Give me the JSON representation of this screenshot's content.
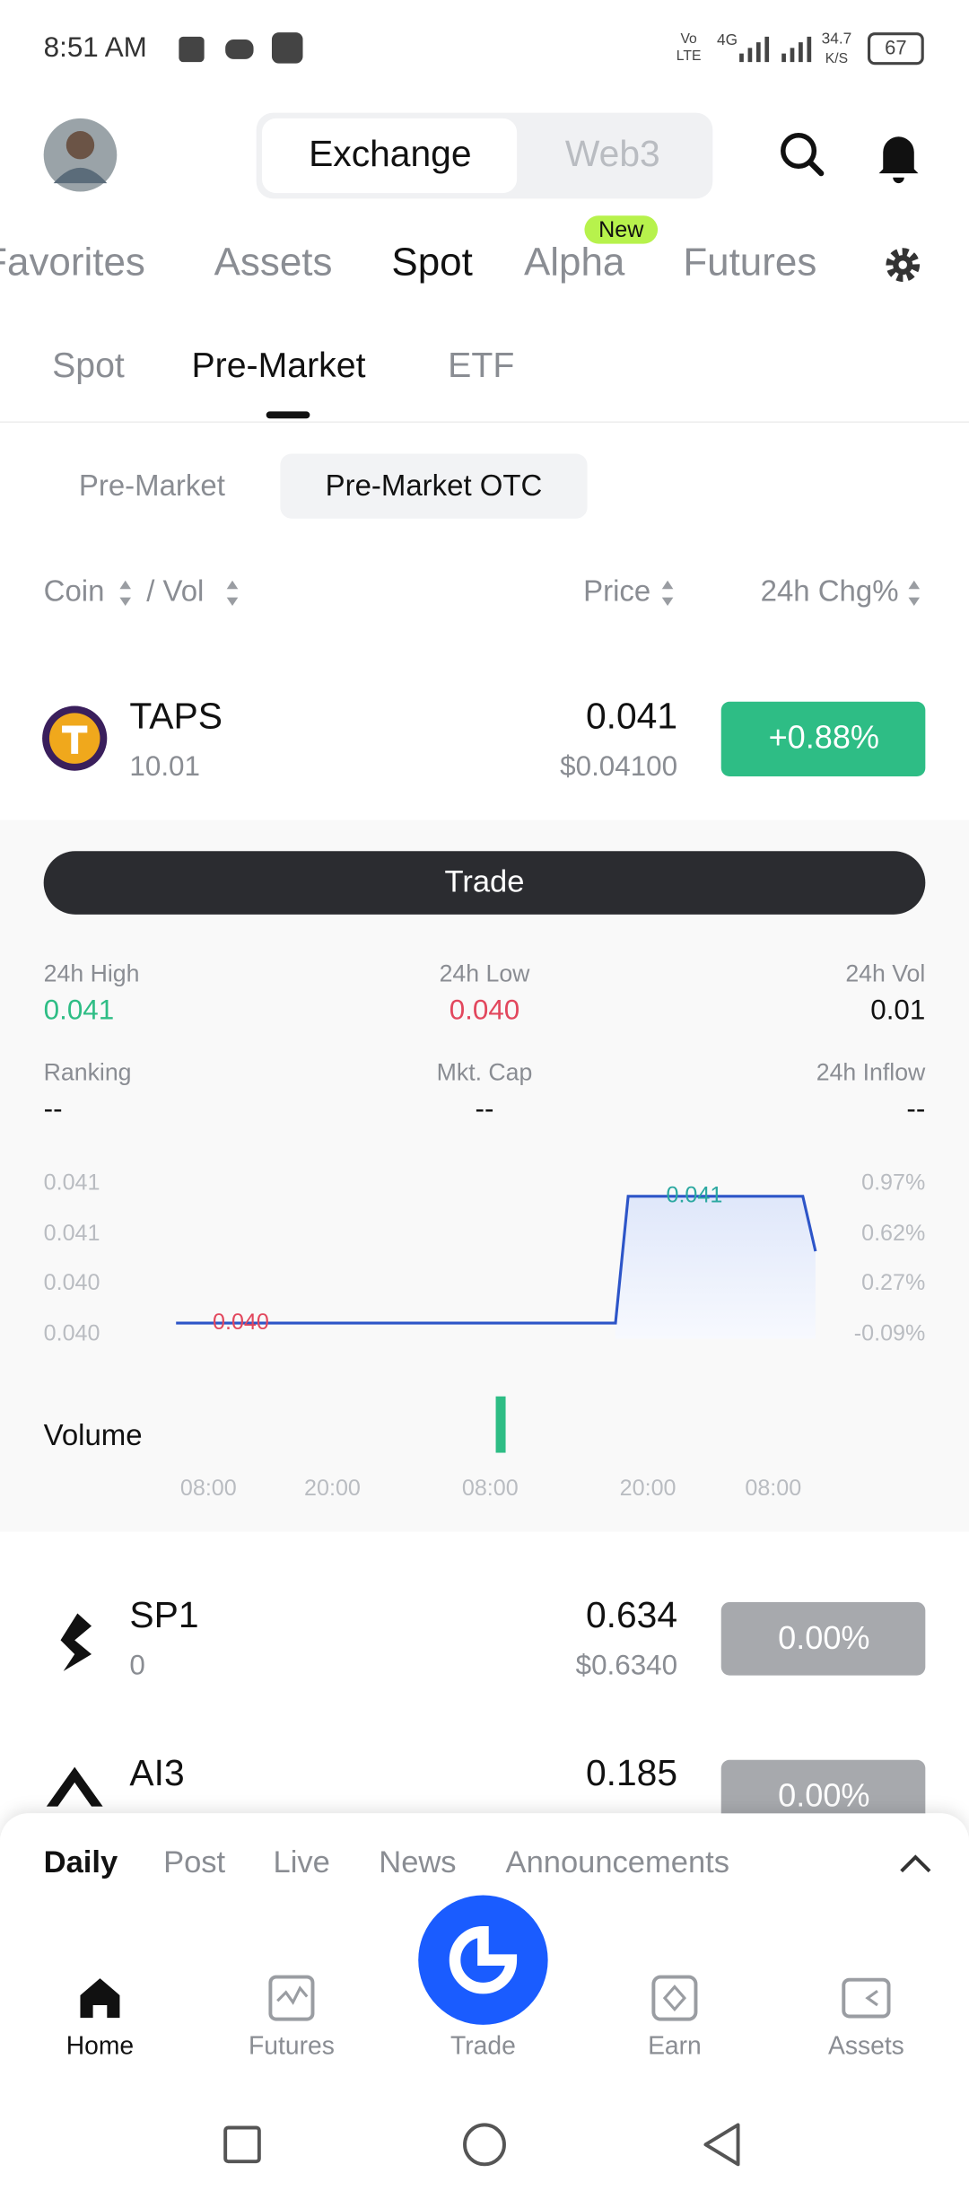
{
  "status_bar": {
    "time": "8:51 AM",
    "volte": [
      "Vo",
      "LTE"
    ],
    "network": "4G",
    "speed": "34.7",
    "speed_unit": "K/S",
    "battery": "67"
  },
  "header": {
    "tabs": [
      "Exchange",
      "Web3"
    ]
  },
  "nav": {
    "tabs": [
      "Favorites",
      "Assets",
      "Spot",
      "Alpha",
      "Futures"
    ],
    "badge": "New"
  },
  "sub_tabs": [
    "Spot",
    "Pre-Market",
    "ETF"
  ],
  "segments": [
    "Pre-Market",
    "Pre-Market OTC"
  ],
  "columns": {
    "coin": "Coin",
    "vol": "/ Vol",
    "price": "Price",
    "change": "24h Chg%"
  },
  "coins": [
    {
      "symbol": "TAPS",
      "volume": "10.01",
      "price": "0.041",
      "usd": "$0.04100",
      "change": "+0.88%"
    },
    {
      "symbol": "SP1",
      "volume": "0",
      "price": "0.634",
      "usd": "$0.6340",
      "change": "0.00%"
    },
    {
      "symbol": "AI3",
      "price": "0.185",
      "change": "0.00%"
    }
  ],
  "detail": {
    "trade": "Trade",
    "stats": [
      {
        "label": "24h High",
        "value": "0.041"
      },
      {
        "label": "24h Low",
        "value": "0.040"
      },
      {
        "label": "24h Vol",
        "value": "0.01"
      },
      {
        "label": "Ranking",
        "value": "--"
      },
      {
        "label": "Mkt. Cap",
        "value": "--"
      },
      {
        "label": "24h Inflow",
        "value": "--"
      }
    ],
    "chart": {
      "left_axis": [
        "0.041",
        "0.041",
        "0.040",
        "0.040"
      ],
      "right_axis": [
        "0.97%",
        "0.62%",
        "0.27%",
        "-0.09%"
      ],
      "high_label": "0.041",
      "low_label": "0.040",
      "volume_label": "Volume",
      "times": [
        "08:00",
        "20:00",
        "08:00",
        "20:00",
        "08:00"
      ]
    }
  },
  "feed_tabs": [
    "Daily",
    "Post",
    "Live",
    "News",
    "Announcements"
  ],
  "bottom_nav": [
    "Home",
    "Futures",
    "Trade",
    "Earn",
    "Assets"
  ]
}
